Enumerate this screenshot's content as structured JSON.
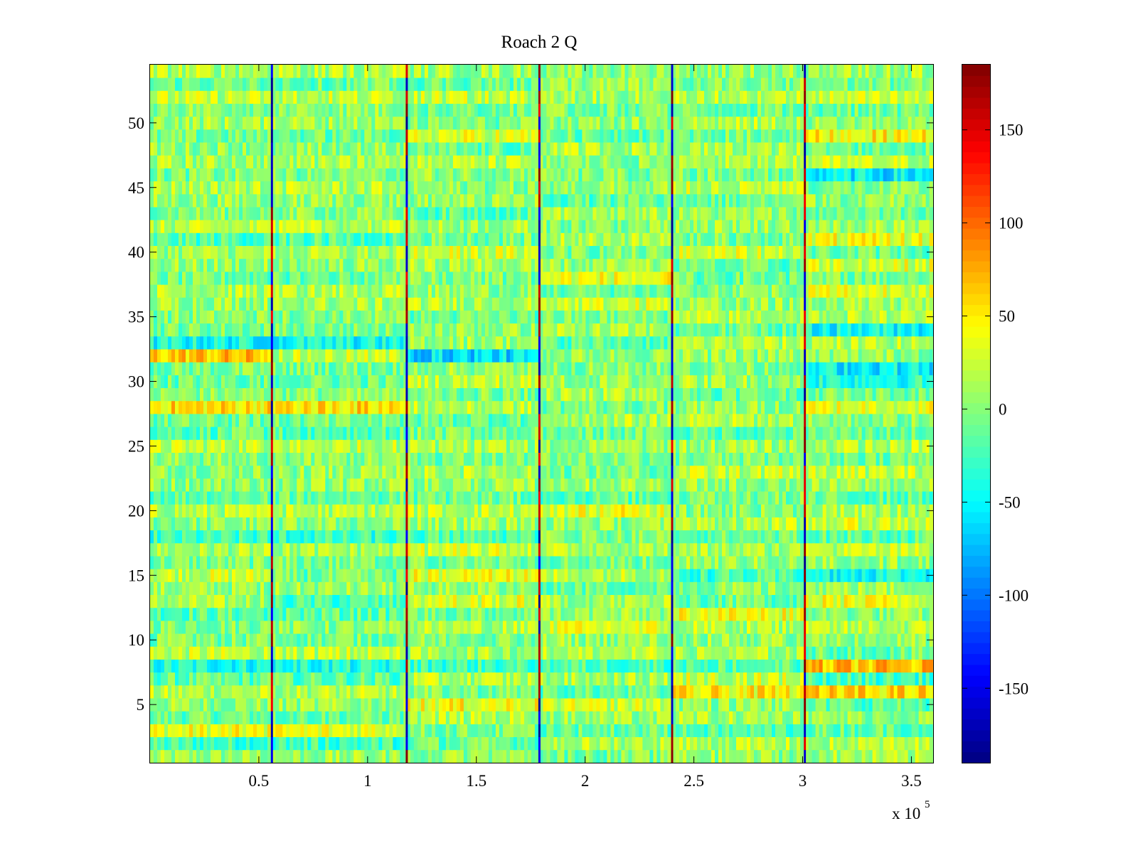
{
  "chart_data": {
    "type": "heatmap",
    "title": "Roach 2 Q",
    "xlabel": "",
    "ylabel": "",
    "x_multiplier_label": "x 10",
    "x_multiplier_exponent": "5",
    "x_range": [
      0,
      3.6
    ],
    "y_range": [
      0.5,
      54.5
    ],
    "rows": 54,
    "x_ticks": [
      0.5,
      1,
      1.5,
      2,
      2.5,
      3,
      3.5
    ],
    "x_tick_labels": [
      "0.5",
      "1",
      "1.5",
      "2",
      "2.5",
      "3",
      "3.5"
    ],
    "y_ticks": [
      5,
      10,
      15,
      20,
      25,
      30,
      35,
      40,
      45,
      50
    ],
    "y_tick_labels": [
      "5",
      "10",
      "15",
      "20",
      "25",
      "30",
      "35",
      "40",
      "45",
      "50"
    ],
    "colorbar": {
      "colormap": "jet",
      "range": [
        -190,
        185
      ],
      "ticks": [
        -150,
        -100,
        -50,
        0,
        50,
        100,
        150
      ],
      "tick_labels": [
        "-150",
        "-100",
        "-50",
        "0",
        "50",
        "100",
        "150"
      ]
    },
    "segment_boundaries": [
      0.56,
      1.18,
      1.79,
      2.4,
      3.01
    ],
    "segments": [
      [
        0,
        0.56
      ],
      [
        0.56,
        1.18
      ],
      [
        1.18,
        1.79
      ],
      [
        1.79,
        2.4
      ],
      [
        2.4,
        3.01
      ],
      [
        3.01,
        3.6
      ]
    ],
    "segment_row_levels": [
      [
        5,
        -25,
        35,
        -10,
        5,
        15,
        -15,
        -40,
        20,
        -5,
        0,
        -15,
        10,
        5,
        25,
        -5,
        10,
        -30,
        0,
        15,
        -10,
        5,
        5,
        0,
        20,
        -15,
        -10,
        55,
        0,
        -10,
        -5,
        65,
        -45,
        -5,
        0,
        10,
        15,
        -10,
        5,
        10,
        -20,
        15,
        0,
        5,
        15,
        -5,
        10,
        5,
        -10,
        10,
        5,
        20,
        -10,
        15
      ],
      [
        5,
        -25,
        35,
        -10,
        5,
        15,
        -15,
        -40,
        20,
        -5,
        0,
        -15,
        -25,
        5,
        -10,
        -5,
        10,
        -30,
        0,
        15,
        -10,
        5,
        5,
        0,
        20,
        -15,
        -10,
        55,
        0,
        -10,
        -5,
        20,
        -45,
        -5,
        0,
        10,
        15,
        -10,
        5,
        10,
        -20,
        15,
        0,
        5,
        15,
        -5,
        10,
        5,
        -10,
        10,
        5,
        20,
        -10,
        15
      ],
      [
        5,
        -10,
        -5,
        15,
        40,
        -5,
        15,
        -25,
        10,
        0,
        15,
        -5,
        30,
        5,
        35,
        -5,
        25,
        -20,
        10,
        20,
        -10,
        5,
        15,
        -5,
        10,
        -5,
        -10,
        15,
        -5,
        20,
        5,
        -60,
        10,
        5,
        -10,
        15,
        5,
        -5,
        10,
        25,
        -5,
        10,
        -15,
        5,
        0,
        5,
        15,
        -15,
        30,
        -5,
        -10,
        20,
        -10,
        10
      ],
      [
        -5,
        15,
        -10,
        5,
        25,
        -15,
        10,
        -20,
        15,
        5,
        30,
        5,
        10,
        -10,
        20,
        -5,
        15,
        0,
        5,
        35,
        -15,
        10,
        -5,
        0,
        5,
        -10,
        15,
        -5,
        10,
        5,
        0,
        5,
        -15,
        10,
        -5,
        25,
        -10,
        35,
        5,
        -5,
        15,
        0,
        10,
        -15,
        5,
        -5,
        0,
        15,
        -10,
        5,
        -5,
        10,
        5,
        0
      ],
      [
        5,
        15,
        -20,
        10,
        5,
        45,
        25,
        -15,
        10,
        5,
        15,
        40,
        -10,
        0,
        -25,
        5,
        10,
        -10,
        15,
        0,
        -5,
        5,
        20,
        -5,
        10,
        -15,
        15,
        5,
        -10,
        10,
        0,
        5,
        15,
        -10,
        15,
        5,
        5,
        -10,
        -15,
        25,
        -5,
        10,
        5,
        -10,
        20,
        -5,
        10,
        10,
        -5,
        15,
        -10,
        20,
        0,
        5
      ],
      [
        10,
        15,
        -10,
        5,
        -15,
        55,
        -25,
        65,
        -10,
        5,
        15,
        0,
        35,
        10,
        -40,
        5,
        20,
        -15,
        25,
        10,
        -15,
        5,
        20,
        -5,
        15,
        -10,
        0,
        35,
        -5,
        -35,
        -50,
        5,
        15,
        -45,
        15,
        10,
        35,
        -5,
        30,
        -10,
        35,
        10,
        -5,
        5,
        -5,
        -55,
        20,
        -10,
        45,
        5,
        -10,
        20,
        -5,
        10
      ]
    ]
  }
}
